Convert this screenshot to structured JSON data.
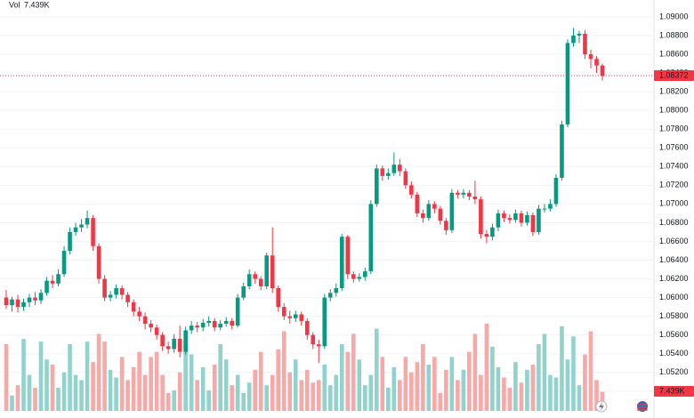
{
  "chart_data": {
    "type": "candlestick",
    "volume_title": "Vol",
    "last_volume": {
      "value": 7.439,
      "label": "7.439K"
    },
    "last_price": 1.08372,
    "up_color": "#089981",
    "down_color": "#f23645",
    "volume_up_color": "#92d2cc",
    "volume_down_color": "#f7a9a7",
    "grid": true,
    "ylim": [
      1.04789,
      1.0918
    ],
    "yticks": [
      {
        "value": 1.05,
        "label": "1.05000"
      },
      {
        "value": 1.052,
        "label": "1.05200"
      },
      {
        "value": 1.054,
        "label": "1.05400"
      },
      {
        "value": 1.056,
        "label": "1.05600"
      },
      {
        "value": 1.058,
        "label": "1.05800"
      },
      {
        "value": 1.06,
        "label": "1.06000"
      },
      {
        "value": 1.062,
        "label": "1.06200"
      },
      {
        "value": 1.064,
        "label": "1.06400"
      },
      {
        "value": 1.066,
        "label": "1.06600"
      },
      {
        "value": 1.068,
        "label": "1.06800"
      },
      {
        "value": 1.07,
        "label": "1.07000"
      },
      {
        "value": 1.072,
        "label": "1.07200"
      },
      {
        "value": 1.074,
        "label": "1.07400"
      },
      {
        "value": 1.076,
        "label": "1.07600"
      },
      {
        "value": 1.078,
        "label": "1.07800"
      },
      {
        "value": 1.08,
        "label": "1.08000"
      },
      {
        "value": 1.082,
        "label": "1.08200"
      },
      {
        "value": 1.084,
        "label": "1.08400"
      },
      {
        "value": 1.086,
        "label": "1.08600"
      },
      {
        "value": 1.088,
        "label": "1.08800"
      },
      {
        "value": 1.09,
        "label": "1.09000"
      }
    ],
    "volume_ylim": [
      0,
      160
    ],
    "open": [
      1.06,
      1.0592,
      1.0598,
      1.059,
      1.0595,
      1.06,
      1.0597,
      1.0605,
      1.0618,
      1.0615,
      1.0625,
      1.065,
      1.067,
      1.0675,
      1.0678,
      1.0685,
      1.0655,
      1.062,
      1.06,
      1.0603,
      1.061,
      1.0603,
      1.0595,
      1.0585,
      1.058,
      1.0572,
      1.0568,
      1.056,
      1.0548,
      1.0545,
      1.0556,
      1.0542,
      1.0565,
      1.057,
      1.0568,
      1.0573,
      1.0575,
      1.0568,
      1.0572,
      1.0575,
      1.057,
      1.06,
      1.0612,
      1.0625,
      1.062,
      1.0612,
      1.0645,
      1.061,
      1.059,
      1.058,
      1.0578,
      1.0582,
      1.0575,
      1.056,
      1.055,
      1.0548,
      1.06,
      1.0605,
      1.061,
      1.0665,
      1.0625,
      1.062,
      1.0622,
      1.0628,
      1.07,
      1.0738,
      1.073,
      1.0733,
      1.0742,
      1.0735,
      1.072,
      1.071,
      1.069,
      1.0685,
      1.07,
      1.0695,
      1.0682,
      1.0672,
      1.0712,
      1.071,
      1.0712,
      1.0708,
      1.0705,
      1.0668,
      1.0665,
      1.0675,
      1.069,
      1.0685,
      1.0683,
      1.069,
      1.068,
      1.0688,
      1.067,
      1.0695,
      1.0695,
      1.07,
      1.0728,
      1.0785,
      1.0872,
      1.088,
      1.0882,
      1.086,
      1.0855,
      1.0848
    ],
    "high": [
      1.0608,
      1.0601,
      1.0603,
      1.0599,
      1.0604,
      1.0606,
      1.0609,
      1.0622,
      1.0624,
      1.063,
      1.0655,
      1.0675,
      1.068,
      1.0684,
      1.0693,
      1.0688,
      1.0658,
      1.0624,
      1.0607,
      1.0614,
      1.0613,
      1.0606,
      1.0598,
      1.059,
      1.0584,
      1.0576,
      1.0571,
      1.0563,
      1.0553,
      1.0561,
      1.057,
      1.0569,
      1.0575,
      1.0574,
      1.0577,
      1.058,
      1.0578,
      1.0576,
      1.0579,
      1.0578,
      1.0604,
      1.0616,
      1.063,
      1.0628,
      1.0623,
      1.0648,
      1.0675,
      1.0613,
      1.0594,
      1.0586,
      1.0586,
      1.0585,
      1.0578,
      1.0563,
      1.0555,
      1.0604,
      1.0609,
      1.0615,
      1.0668,
      1.0667,
      1.0628,
      1.0626,
      1.0632,
      1.0704,
      1.0742,
      1.0741,
      1.0738,
      1.0755,
      1.0748,
      1.0738,
      1.0724,
      1.0713,
      1.0694,
      1.0704,
      1.0703,
      1.0698,
      1.0685,
      1.0716,
      1.0715,
      1.0716,
      1.0715,
      1.0725,
      1.0708,
      1.0672,
      1.0679,
      1.0694,
      1.0693,
      1.0689,
      1.0694,
      1.0693,
      1.0692,
      1.0691,
      1.0699,
      1.07,
      1.0705,
      1.0732,
      1.0789,
      1.0876,
      1.0888,
      1.0885,
      1.0886,
      1.0865,
      1.0858,
      1.085
    ],
    "low": [
      1.0588,
      1.0585,
      1.0584,
      1.0586,
      1.059,
      1.0592,
      1.0593,
      1.0602,
      1.061,
      1.0612,
      1.0622,
      1.0646,
      1.0666,
      1.067,
      1.0674,
      1.065,
      1.0615,
      1.0596,
      1.0596,
      1.0599,
      1.0598,
      1.059,
      1.058,
      1.0575,
      1.0566,
      1.0563,
      1.0555,
      1.0543,
      1.054,
      1.0541,
      1.0536,
      1.0539,
      1.0561,
      1.0563,
      1.0564,
      1.0569,
      1.0564,
      1.0565,
      1.0569,
      1.0566,
      1.0568,
      1.0597,
      1.0609,
      1.0615,
      1.0608,
      1.0609,
      1.0605,
      1.0585,
      1.0576,
      1.0572,
      1.0574,
      1.057,
      1.0555,
      1.0545,
      1.053,
      1.0545,
      1.0596,
      1.0601,
      1.0607,
      1.062,
      1.0616,
      1.0617,
      1.0618,
      1.0625,
      1.0697,
      1.0725,
      1.0726,
      1.073,
      1.073,
      1.0716,
      1.0706,
      1.0686,
      1.068,
      1.0682,
      1.069,
      1.0678,
      1.0667,
      1.0669,
      1.0706,
      1.0706,
      1.0704,
      1.07,
      1.0663,
      1.0658,
      1.0661,
      1.0671,
      1.0681,
      1.0679,
      1.068,
      1.0676,
      1.0677,
      1.0666,
      1.0667,
      1.0691,
      1.0692,
      1.0697,
      1.0725,
      1.0782,
      1.0868,
      1.0872,
      1.0855,
      1.0845,
      1.084,
      1.0832
    ],
    "close": [
      1.0592,
      1.0598,
      1.059,
      1.0595,
      1.06,
      1.0597,
      1.0605,
      1.0618,
      1.0615,
      1.0625,
      1.065,
      1.067,
      1.0675,
      1.0678,
      1.0685,
      1.0655,
      1.062,
      1.06,
      1.0603,
      1.061,
      1.0603,
      1.0595,
      1.0585,
      1.058,
      1.0572,
      1.0568,
      1.056,
      1.0548,
      1.0545,
      1.0556,
      1.0542,
      1.0565,
      1.057,
      1.0568,
      1.0573,
      1.0575,
      1.0568,
      1.0572,
      1.0575,
      1.057,
      1.06,
      1.0612,
      1.0625,
      1.062,
      1.0612,
      1.0645,
      1.061,
      1.059,
      1.058,
      1.0578,
      1.0582,
      1.0575,
      1.056,
      1.055,
      1.0548,
      1.06,
      1.0605,
      1.061,
      1.0665,
      1.0625,
      1.062,
      1.0622,
      1.0628,
      1.07,
      1.0738,
      1.073,
      1.0733,
      1.0742,
      1.0735,
      1.072,
      1.071,
      1.069,
      1.0685,
      1.07,
      1.0695,
      1.0682,
      1.0672,
      1.0712,
      1.071,
      1.0712,
      1.0708,
      1.0705,
      1.0668,
      1.0665,
      1.0675,
      1.069,
      1.0685,
      1.0683,
      1.069,
      1.068,
      1.0688,
      1.067,
      1.0695,
      1.0695,
      1.07,
      1.0728,
      1.0785,
      1.0872,
      1.088,
      1.0882,
      1.086,
      1.0855,
      1.0848,
      1.0837
    ],
    "volume": [
      26,
      6,
      10,
      28,
      14,
      9,
      27,
      20,
      18,
      9,
      15,
      26,
      14,
      12,
      27,
      19,
      30,
      27,
      16,
      13,
      21,
      12,
      17,
      23,
      14,
      21,
      23,
      14,
      7,
      8,
      15,
      26,
      22,
      12,
      17,
      8,
      18,
      26,
      20,
      10,
      14,
      7,
      11,
      16,
      23,
      10,
      14,
      24,
      31,
      15,
      20,
      12,
      16,
      11,
      12,
      18,
      10,
      14,
      26,
      23,
      30,
      20,
      10,
      14,
      32,
      21,
      9,
      17,
      12,
      21,
      15,
      19,
      26,
      18,
      21,
      7,
      16,
      21,
      12,
      16,
      23,
      30,
      14,
      34,
      25,
      17,
      13,
      9,
      19,
      11,
      16,
      18,
      26,
      30,
      14,
      13,
      33,
      20,
      29,
      10,
      22,
      31,
      12,
      7.439
    ]
  }
}
